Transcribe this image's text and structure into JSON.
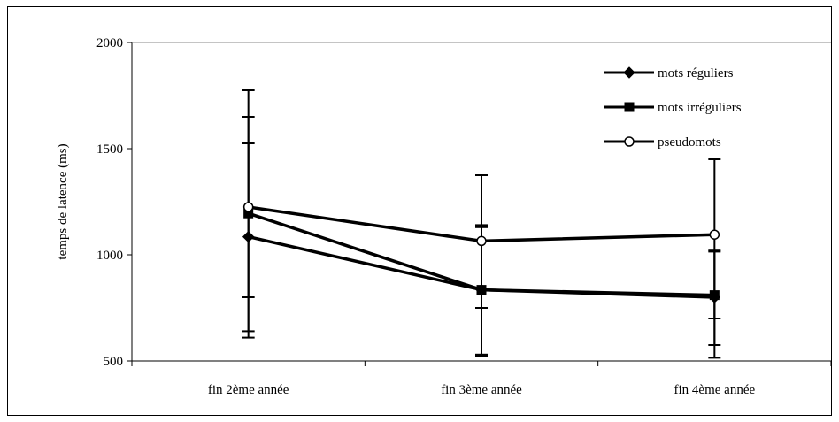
{
  "chart_data": {
    "type": "line",
    "title": "",
    "xlabel": "",
    "ylabel": "temps de latence (ms)",
    "categories": [
      "fin 2ème année",
      "fin 3ème année",
      "fin 4ème année"
    ],
    "ylim": [
      500,
      2000
    ],
    "yticks": [
      "500",
      "1000",
      "1500",
      "2000"
    ],
    "grid": false,
    "legend_position": "top-right",
    "series": [
      {
        "name": "mots réguliers",
        "marker": "diamond",
        "values": [
          1085,
          835,
          800
        ],
        "error_low": [
          800,
          750,
          700
        ],
        "error_high": [
          1525,
          1130,
          1015
        ]
      },
      {
        "name": "mots irréguliers",
        "marker": "square",
        "values": [
          1195,
          835,
          810
        ],
        "error_low": [
          640,
          530,
          575
        ],
        "error_high": [
          1650,
          1140,
          1020
        ]
      },
      {
        "name": "pseudomots",
        "marker": "circle",
        "values": [
          1225,
          1065,
          1095
        ],
        "error_low": [
          610,
          525,
          515
        ],
        "error_high": [
          1775,
          1375,
          1450
        ]
      }
    ],
    "colors": {
      "line": "#000000",
      "open_marker_fill": "#ffffff"
    }
  }
}
